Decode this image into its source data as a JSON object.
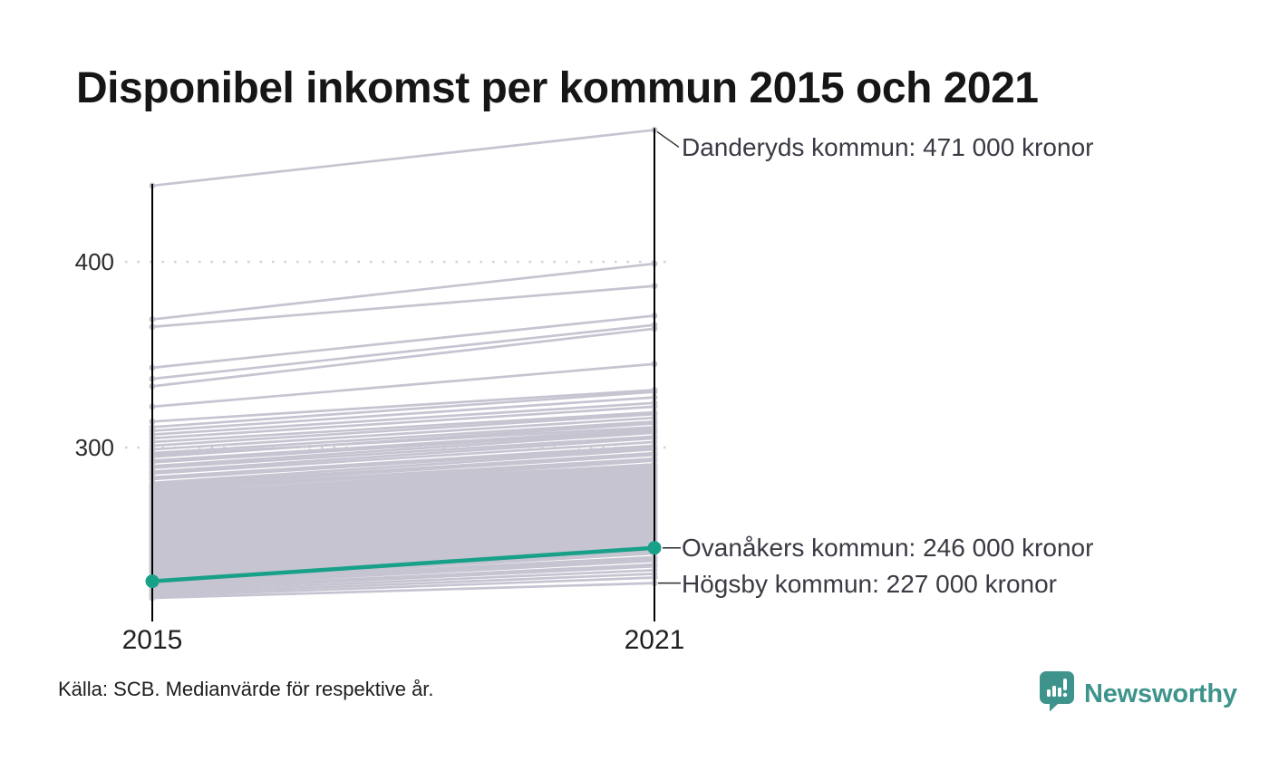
{
  "header": {
    "title": "Disponibel inkomst per kommun 2015 och 2021"
  },
  "footer": {
    "source": "Källa: SCB. Medianvärde för respektive år.",
    "brand": "Newsworthy"
  },
  "chart_data": {
    "type": "line",
    "variant": "slope-chart",
    "title": "Disponibel inkomst per kommun 2015 och 2021",
    "x_labels": [
      "2015",
      "2021"
    ],
    "ytick_labels": [
      "400",
      "300"
    ],
    "yticks": [
      400,
      300
    ],
    "ylim": [
      215,
      475
    ],
    "grid": "dotted-horizontal",
    "legend_position": "none",
    "annotations": [
      {
        "name": "danderyd",
        "label": "Danderyds kommun: 471 000 kronor",
        "value_2021": 471
      },
      {
        "name": "ovanaker",
        "label": "Ovanåkers kommun: 246 000 kronor",
        "value_2021": 246
      },
      {
        "name": "hogsby",
        "label": "Högsby kommun: 227 000 kronor",
        "value_2021": 227
      }
    ],
    "highlight_line": {
      "name": "Ovanåkers kommun",
      "values": [
        228,
        246
      ]
    },
    "hogsby_line": {
      "name": "Högsby kommun",
      "values": [
        219,
        227
      ]
    },
    "danderyd_line": {
      "name": "Danderyds kommun",
      "values": [
        441,
        471
      ]
    },
    "colors": {
      "highlight": "#18a089",
      "line_gray": "#c6c4d1",
      "axis": "#000000",
      "grid": "#d2d2d2",
      "callout": "#2a2a2a",
      "brand_teal": "#3e948c"
    },
    "background_lines": [
      [
        369,
        399
      ],
      [
        365,
        387
      ],
      [
        343,
        371
      ],
      [
        337,
        366
      ],
      [
        333,
        364
      ],
      [
        322,
        345
      ],
      [
        314,
        331
      ],
      [
        311,
        330
      ],
      [
        309,
        327
      ],
      [
        307,
        324
      ],
      [
        305,
        322
      ],
      [
        303,
        319
      ],
      [
        301,
        318
      ],
      [
        299,
        316
      ],
      [
        297,
        314
      ],
      [
        296,
        311
      ],
      [
        295,
        313
      ],
      [
        293,
        310
      ],
      [
        292,
        309
      ],
      [
        290,
        308
      ],
      [
        289,
        306
      ],
      [
        287,
        305
      ],
      [
        286,
        303
      ],
      [
        284,
        301
      ],
      [
        283,
        300
      ],
      [
        281,
        299
      ],
      [
        280,
        297
      ],
      [
        279,
        296
      ],
      [
        278,
        294
      ],
      [
        277,
        293
      ],
      [
        276,
        294
      ],
      [
        275,
        291
      ],
      [
        274.5,
        293
      ],
      [
        274,
        290
      ],
      [
        273,
        289
      ],
      [
        272.5,
        291
      ],
      [
        272,
        288
      ],
      [
        271,
        287
      ],
      [
        270.5,
        289
      ],
      [
        270,
        286
      ],
      [
        269,
        285
      ],
      [
        268.5,
        287
      ],
      [
        268,
        284
      ],
      [
        267,
        283
      ],
      [
        266.5,
        285
      ],
      [
        266,
        282
      ],
      [
        265,
        281
      ],
      [
        264.5,
        283
      ],
      [
        264,
        280
      ],
      [
        263,
        279
      ],
      [
        262.5,
        281
      ],
      [
        262,
        278
      ],
      [
        261,
        277
      ],
      [
        260.5,
        279
      ],
      [
        260,
        276
      ],
      [
        259,
        275
      ],
      [
        258.5,
        277
      ],
      [
        258,
        274
      ],
      [
        257,
        273
      ],
      [
        256.5,
        275
      ],
      [
        256,
        272
      ],
      [
        255,
        271
      ],
      [
        254.5,
        273
      ],
      [
        254,
        270
      ],
      [
        253,
        269
      ],
      [
        252.5,
        271
      ],
      [
        252,
        268
      ],
      [
        251,
        267
      ],
      [
        250.5,
        269
      ],
      [
        250,
        266
      ],
      [
        249,
        265
      ],
      [
        248.5,
        267
      ],
      [
        248,
        264
      ],
      [
        247,
        263
      ],
      [
        246.5,
        265
      ],
      [
        246,
        262
      ],
      [
        245,
        261
      ],
      [
        244.5,
        263
      ],
      [
        244,
        260
      ],
      [
        243,
        259
      ],
      [
        242.5,
        261
      ],
      [
        242,
        258
      ],
      [
        241,
        257
      ],
      [
        240.5,
        259
      ],
      [
        240,
        256
      ],
      [
        239,
        255
      ],
      [
        238.5,
        257
      ],
      [
        238,
        254
      ],
      [
        237,
        253
      ],
      [
        236.5,
        255
      ],
      [
        236,
        252
      ],
      [
        235,
        251
      ],
      [
        234.5,
        253
      ],
      [
        234,
        250
      ],
      [
        233,
        249
      ],
      [
        232.5,
        251
      ],
      [
        232,
        248
      ],
      [
        231,
        247
      ],
      [
        230.5,
        249
      ],
      [
        230,
        246
      ],
      [
        229,
        245
      ],
      [
        228.5,
        244
      ],
      [
        227.5,
        243
      ],
      [
        227,
        241
      ],
      [
        226,
        240
      ],
      [
        225,
        239
      ],
      [
        224,
        237
      ],
      [
        223,
        236
      ],
      [
        222,
        234
      ],
      [
        221,
        232
      ],
      [
        220,
        230
      ]
    ]
  }
}
